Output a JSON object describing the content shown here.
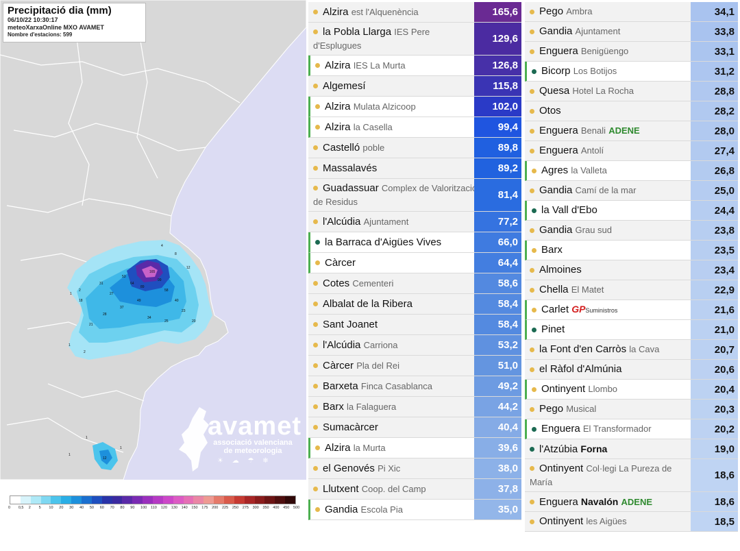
{
  "map": {
    "title": "Precipitació dia (mm)",
    "datetime": "06/10/22 10:30:17",
    "source": "meteoXarxaOnline MXO AVAMET",
    "stations": "Nombre d'estacions: 599",
    "logo": {
      "name": "avamet",
      "subtitle_line1": "associació valenciana",
      "subtitle_line2": "de meteorologia"
    },
    "legend": {
      "labels": [
        "0",
        "0,5",
        "2",
        "5",
        "10",
        "20",
        "30",
        "40",
        "50",
        "60",
        "70",
        "80",
        "90",
        "100",
        "110",
        "120",
        "130",
        "140",
        "150",
        "175",
        "200",
        "225",
        "250",
        "275",
        "300",
        "350",
        "400",
        "450",
        "500"
      ],
      "colors": [
        "#ffffff",
        "#d8f4fb",
        "#aee9f7",
        "#7fd8f2",
        "#4cc4ec",
        "#2aaee6",
        "#1d90dc",
        "#1b6fcf",
        "#1f4fbf",
        "#2a33a8",
        "#3b2aa0",
        "#5a2aa8",
        "#7a2bb3",
        "#9a30bd",
        "#b53ac4",
        "#cc47c8",
        "#dc5bc4",
        "#e56fb5",
        "#ea86a5",
        "#ee9a92",
        "#e57a6a",
        "#d95a4a",
        "#c63a32",
        "#a82626",
        "#8a1c1c",
        "#6c1414",
        "#4e0e0e",
        "#300808"
      ]
    }
  },
  "colors": {
    "row_bg": "#f2f2f2",
    "highlight_bar": "#4caf50",
    "dot_yellow": "#e6b94c",
    "dot_green": "#1c6a52"
  },
  "stations_left": [
    {
      "name": "Alzira",
      "sub": "est l'Alquenència",
      "value": "165,6",
      "dot": "yellow",
      "hl": false,
      "color": "#6a2a93",
      "text_color": "#ffffff"
    },
    {
      "name": "la Pobla Llarga",
      "sub": "IES Pere d'Esplugues",
      "value": "129,6",
      "dot": "yellow",
      "hl": false,
      "color": "#4b2ba1",
      "text_color": "#ffffff",
      "wrap": true
    },
    {
      "name": "Alzira",
      "sub": "IES La Murta",
      "value": "126,8",
      "dot": "yellow",
      "hl": true,
      "color": "#4730a8",
      "text_color": "#ffffff"
    },
    {
      "name": "Algemesí",
      "sub": "",
      "value": "115,8",
      "dot": "yellow",
      "hl": false,
      "color": "#3a34b4",
      "text_color": "#ffffff"
    },
    {
      "name": "Alzira",
      "sub": "Mulata Alzicoop",
      "value": "102,0",
      "dot": "yellow",
      "hl": true,
      "color": "#2a3ac7",
      "text_color": "#ffffff"
    },
    {
      "name": "Alzira",
      "sub": "la Casella",
      "value": "99,4",
      "dot": "yellow",
      "hl": true,
      "color": "#1f55e0",
      "text_color": "#ffffff"
    },
    {
      "name": "Castelló",
      "sub": "poble",
      "value": "89,8",
      "dot": "yellow",
      "hl": false,
      "color": "#2060e0",
      "text_color": "#ffffff"
    },
    {
      "name": "Massalavés",
      "sub": "",
      "value": "89,2",
      "dot": "yellow",
      "hl": false,
      "color": "#2162df",
      "text_color": "#ffffff"
    },
    {
      "name": "Guadassuar",
      "sub": "Complex de Valorització de Residus",
      "value": "81,4",
      "dot": "yellow",
      "hl": false,
      "color": "#2a6ce0",
      "text_color": "#ffffff",
      "wrap": true
    },
    {
      "name": "l'Alcúdia",
      "sub": "Ajuntament",
      "value": "77,2",
      "dot": "yellow",
      "hl": false,
      "color": "#3573e0",
      "text_color": "#ffffff"
    },
    {
      "name": "la Barraca d'Aigües Vives",
      "sub": "",
      "value": "66,0",
      "dot": "green",
      "hl": true,
      "color": "#3f7be0",
      "text_color": "#ffffff"
    },
    {
      "name": "Càrcer",
      "sub": "",
      "value": "64,4",
      "dot": "yellow",
      "hl": true,
      "color": "#437ee0",
      "text_color": "#ffffff"
    },
    {
      "name": "Cotes",
      "sub": "Cementeri",
      "value": "58,6",
      "dot": "yellow",
      "hl": false,
      "color": "#5389e0",
      "text_color": "#ffffff"
    },
    {
      "name": "Albalat de la Ribera",
      "sub": "",
      "value": "58,4",
      "dot": "yellow",
      "hl": false,
      "color": "#548ae0",
      "text_color": "#ffffff"
    },
    {
      "name": "Sant Joanet",
      "sub": "",
      "value": "58,4",
      "dot": "yellow",
      "hl": false,
      "color": "#548ae0",
      "text_color": "#ffffff"
    },
    {
      "name": "l'Alcúdia",
      "sub": "Carriona",
      "value": "53,2",
      "dot": "yellow",
      "hl": false,
      "color": "#5f91e0",
      "text_color": "#ffffff"
    },
    {
      "name": "Càrcer",
      "sub": "Pla del Rei",
      "value": "51,0",
      "dot": "yellow",
      "hl": false,
      "color": "#6495e0",
      "text_color": "#ffffff"
    },
    {
      "name": "Barxeta",
      "sub": "Finca Casablanca",
      "value": "49,2",
      "dot": "yellow",
      "hl": false,
      "color": "#6d9be2",
      "text_color": "#ffffff"
    },
    {
      "name": "Barx",
      "sub": "la Falaguera",
      "value": "44,2",
      "dot": "yellow",
      "hl": false,
      "color": "#79a3e4",
      "text_color": "#ffffff"
    },
    {
      "name": "Sumacàrcer",
      "sub": "",
      "value": "40,4",
      "dot": "yellow",
      "hl": false,
      "color": "#85abe6",
      "text_color": "#ffffff"
    },
    {
      "name": "Alzira",
      "sub": "la Murta",
      "value": "39,6",
      "dot": "yellow",
      "hl": true,
      "color": "#88aee7",
      "text_color": "#ffffff"
    },
    {
      "name": "el Genovés",
      "sub": "Pi Xic",
      "value": "38,0",
      "dot": "yellow",
      "hl": false,
      "color": "#8cb1e8",
      "text_color": "#ffffff"
    },
    {
      "name": "Llutxent",
      "sub": "Coop. del Camp",
      "value": "37,8",
      "dot": "yellow",
      "hl": false,
      "color": "#8db1e8",
      "text_color": "#ffffff"
    },
    {
      "name": "Gandia",
      "sub": "Escola Pia",
      "value": "35,0",
      "dot": "yellow",
      "hl": true,
      "color": "#93b6e9",
      "text_color": "#ffffff"
    }
  ],
  "stations_right": [
    {
      "name": "Pego",
      "sub": "Ambra",
      "value": "34,1",
      "dot": "yellow",
      "hl": false,
      "color": "#a9c3ef",
      "text_color": "#111111"
    },
    {
      "name": "Gandia",
      "sub": "Ajuntament",
      "value": "33,8",
      "dot": "yellow",
      "hl": false,
      "color": "#a9c3ef",
      "text_color": "#111111"
    },
    {
      "name": "Enguera",
      "sub": "Benigüengo",
      "value": "33,1",
      "dot": "yellow",
      "hl": false,
      "color": "#abc5ef",
      "text_color": "#111111"
    },
    {
      "name": "Bicorp",
      "sub": "Los Botijos",
      "value": "31,2",
      "dot": "green",
      "hl": true,
      "color": "#adc6f0",
      "text_color": "#111111"
    },
    {
      "name": "Quesa",
      "sub": "Hotel La Rocha",
      "value": "28,8",
      "dot": "yellow",
      "hl": false,
      "color": "#b0c8f0",
      "text_color": "#111111"
    },
    {
      "name": "Otos",
      "sub": "",
      "value": "28,2",
      "dot": "yellow",
      "hl": false,
      "color": "#b1c9f0",
      "text_color": "#111111"
    },
    {
      "name": "Enguera",
      "sub": "Benali",
      "tag": "ADENE",
      "value": "28,0",
      "dot": "yellow",
      "hl": false,
      "color": "#b1c9f0",
      "text_color": "#111111"
    },
    {
      "name": "Enguera",
      "sub": "Antolí",
      "value": "27,4",
      "dot": "yellow",
      "hl": false,
      "color": "#b2caf0",
      "text_color": "#111111"
    },
    {
      "name": "Agres",
      "sub": "la Valleta",
      "value": "26,8",
      "dot": "yellow",
      "hl": true,
      "color": "#b3cbf0",
      "text_color": "#111111"
    },
    {
      "name": "Gandia",
      "sub": "Camí de la mar",
      "value": "25,0",
      "dot": "yellow",
      "hl": false,
      "color": "#b5ccf1",
      "text_color": "#111111"
    },
    {
      "name": "la Vall d'Ebo",
      "sub": "",
      "value": "24,4",
      "dot": "green",
      "hl": true,
      "color": "#b6cdf1",
      "text_color": "#111111"
    },
    {
      "name": "Gandia",
      "sub": "Grau sud",
      "value": "23,8",
      "dot": "yellow",
      "hl": false,
      "color": "#b7cef1",
      "text_color": "#111111"
    },
    {
      "name": "Barx",
      "sub": "",
      "value": "23,5",
      "dot": "yellow",
      "hl": true,
      "color": "#b7cef1",
      "text_color": "#111111"
    },
    {
      "name": "Almoines",
      "sub": "",
      "value": "23,4",
      "dot": "yellow",
      "hl": false,
      "color": "#b8cef1",
      "text_color": "#111111"
    },
    {
      "name": "Chella",
      "sub": "El Matet",
      "value": "22,9",
      "dot": "yellow",
      "hl": false,
      "color": "#b8cff1",
      "text_color": "#111111"
    },
    {
      "name": "Carlet",
      "sub": "",
      "brand": "GP",
      "brand_sub": "Suministros",
      "value": "21,6",
      "dot": "yellow",
      "hl": true,
      "color": "#bad0f2",
      "text_color": "#111111"
    },
    {
      "name": "Pinet",
      "sub": "",
      "value": "21,0",
      "dot": "green",
      "hl": true,
      "color": "#bbd1f2",
      "text_color": "#111111"
    },
    {
      "name": "la Font d'en Carròs",
      "sub": "la Cava",
      "value": "20,7",
      "dot": "yellow",
      "hl": false,
      "color": "#bbd1f2",
      "text_color": "#111111"
    },
    {
      "name": "el Ràfol d'Almúnia",
      "sub": "",
      "value": "20,6",
      "dot": "yellow",
      "hl": false,
      "color": "#bcd1f2",
      "text_color": "#111111"
    },
    {
      "name": "Ontinyent",
      "sub": "Llombo",
      "value": "20,4",
      "dot": "yellow",
      "hl": true,
      "color": "#bcd2f2",
      "text_color": "#111111"
    },
    {
      "name": "Pego",
      "sub": "Musical",
      "value": "20,3",
      "dot": "yellow",
      "hl": false,
      "color": "#bcd2f2",
      "text_color": "#111111"
    },
    {
      "name": "Enguera",
      "sub": "El Transformador",
      "value": "20,2",
      "dot": "green",
      "hl": true,
      "color": "#bdd2f2",
      "text_color": "#111111"
    },
    {
      "name": "l'Atzúbia",
      "sub": "",
      "tag2": "Forna",
      "value": "19,0",
      "dot": "green",
      "hl": false,
      "color": "#bed3f2",
      "text_color": "#111111"
    },
    {
      "name": "Ontinyent",
      "sub": "Col·legi La Pureza de María",
      "value": "18,6",
      "dot": "yellow",
      "hl": false,
      "color": "#bfd4f3",
      "text_color": "#111111",
      "wrap": true
    },
    {
      "name": "Enguera",
      "sub": "",
      "tag2": "Navalón",
      "tag": "ADENE",
      "value": "18,6",
      "dot": "yellow",
      "hl": false,
      "color": "#bfd4f3",
      "text_color": "#111111"
    },
    {
      "name": "Ontinyent",
      "sub": "les Aigües",
      "value": "18,5",
      "dot": "yellow",
      "hl": false,
      "color": "#bfd4f3",
      "text_color": "#111111"
    }
  ]
}
